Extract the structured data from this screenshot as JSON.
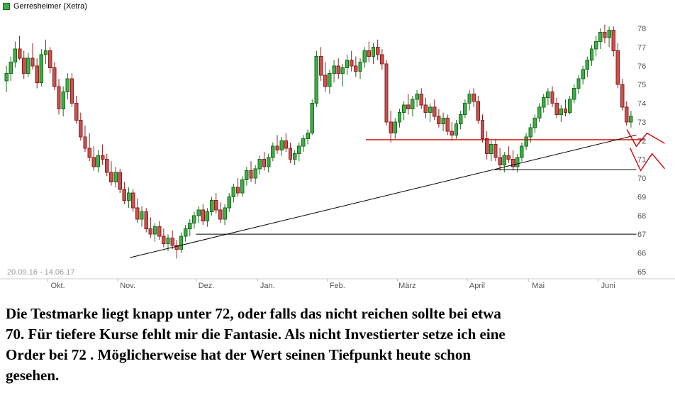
{
  "legend": {
    "title": "Gerresheimer (Xetra)"
  },
  "chart_data": {
    "type": "candlestick",
    "title": "Gerresheimer (Xetra)",
    "date_range_label": "20.09.16 - 14.06.17",
    "y_ticks": [
      65,
      66,
      67,
      68,
      69,
      70,
      71,
      72,
      73,
      74,
      75,
      76,
      77,
      78
    ],
    "x_axis_months": [
      {
        "label": "Okt.",
        "index": 10
      },
      {
        "label": "Nov.",
        "index": 26
      },
      {
        "label": "Dez.",
        "index": 44
      },
      {
        "label": "Jan.",
        "index": 58
      },
      {
        "label": "Feb.",
        "index": 74
      },
      {
        "label": "März",
        "index": 90
      },
      {
        "label": "April",
        "index": 106
      },
      {
        "label": "Mai",
        "index": 120
      },
      {
        "label": "Juni",
        "index": 136
      }
    ],
    "colors": {
      "up": "#3fae49",
      "up_border": "#1a6b1a",
      "down": "#c9524e",
      "down_border": "#8b1f1f",
      "annotation_red": "#d40000",
      "annotation_black": "#000000",
      "axis_text": "#555555",
      "axis_line": "#cccccc"
    },
    "candles": [
      [
        75.2,
        76.0,
        74.6,
        75.6
      ],
      [
        75.6,
        76.5,
        75.2,
        76.2
      ],
      [
        76.2,
        77.3,
        75.9,
        76.9
      ],
      [
        76.9,
        77.6,
        76.3,
        76.4
      ],
      [
        76.4,
        76.8,
        75.3,
        75.6
      ],
      [
        75.6,
        76.7,
        75.4,
        76.4
      ],
      [
        76.4,
        77.2,
        75.8,
        76.0
      ],
      [
        76.0,
        76.4,
        74.8,
        75.1
      ],
      [
        75.1,
        76.9,
        74.9,
        76.6
      ],
      [
        76.6,
        77.4,
        76.1,
        76.8
      ],
      [
        76.8,
        77.0,
        75.6,
        75.9
      ],
      [
        75.9,
        76.2,
        74.7,
        74.9
      ],
      [
        74.9,
        75.3,
        73.4,
        73.7
      ],
      [
        73.7,
        74.9,
        73.3,
        74.6
      ],
      [
        74.6,
        75.6,
        74.2,
        75.3
      ],
      [
        75.3,
        75.6,
        73.8,
        74.0
      ],
      [
        74.0,
        74.4,
        72.9,
        73.1
      ],
      [
        73.1,
        73.5,
        72.0,
        72.2
      ],
      [
        72.2,
        72.8,
        71.4,
        71.6
      ],
      [
        71.6,
        72.4,
        70.9,
        71.1
      ],
      [
        71.1,
        71.7,
        70.4,
        70.6
      ],
      [
        70.6,
        71.5,
        70.3,
        71.2
      ],
      [
        71.2,
        71.8,
        70.7,
        71.0
      ],
      [
        71.0,
        71.3,
        70.1,
        70.3
      ],
      [
        70.3,
        70.9,
        69.6,
        69.8
      ],
      [
        69.8,
        70.6,
        69.5,
        70.3
      ],
      [
        70.3,
        70.5,
        69.2,
        69.4
      ],
      [
        69.4,
        69.8,
        68.6,
        68.8
      ],
      [
        68.8,
        69.5,
        68.4,
        69.2
      ],
      [
        69.2,
        69.4,
        68.2,
        68.4
      ],
      [
        68.4,
        68.9,
        67.6,
        67.8
      ],
      [
        67.8,
        68.5,
        67.4,
        68.2
      ],
      [
        68.2,
        68.4,
        67.1,
        67.3
      ],
      [
        67.3,
        67.9,
        66.8,
        67.0
      ],
      [
        67.0,
        67.6,
        66.6,
        67.4
      ],
      [
        67.4,
        67.7,
        66.7,
        66.9
      ],
      [
        66.9,
        67.3,
        66.3,
        66.5
      ],
      [
        66.5,
        67.0,
        66.1,
        66.8
      ],
      [
        66.8,
        67.2,
        66.2,
        66.4
      ],
      [
        66.4,
        66.7,
        65.7,
        66.2
      ],
      [
        66.2,
        67.1,
        66.0,
        66.9
      ],
      [
        66.9,
        67.5,
        66.6,
        67.3
      ],
      [
        67.3,
        67.8,
        66.9,
        67.6
      ],
      [
        67.6,
        68.2,
        67.3,
        68.0
      ],
      [
        68.0,
        68.5,
        67.6,
        68.3
      ],
      [
        68.3,
        68.6,
        67.5,
        67.7
      ],
      [
        67.7,
        68.4,
        67.4,
        68.2
      ],
      [
        68.2,
        69.0,
        68.0,
        68.8
      ],
      [
        68.8,
        69.2,
        68.1,
        68.3
      ],
      [
        68.3,
        68.7,
        67.6,
        67.8
      ],
      [
        67.8,
        68.6,
        67.5,
        68.4
      ],
      [
        68.4,
        69.2,
        68.2,
        69.0
      ],
      [
        69.0,
        69.7,
        68.7,
        69.5
      ],
      [
        69.5,
        70.0,
        69.0,
        69.2
      ],
      [
        69.2,
        70.1,
        69.0,
        69.9
      ],
      [
        69.9,
        70.6,
        69.6,
        70.4
      ],
      [
        70.4,
        70.9,
        69.8,
        70.0
      ],
      [
        70.0,
        70.7,
        69.7,
        70.5
      ],
      [
        70.5,
        71.2,
        70.2,
        71.0
      ],
      [
        71.0,
        71.4,
        70.4,
        70.6
      ],
      [
        70.6,
        71.3,
        70.3,
        71.1
      ],
      [
        71.1,
        71.9,
        70.9,
        71.7
      ],
      [
        71.7,
        72.3,
        71.3,
        71.5
      ],
      [
        71.5,
        72.2,
        71.2,
        72.0
      ],
      [
        72.0,
        72.4,
        71.4,
        71.6
      ],
      [
        71.6,
        71.9,
        70.8,
        71.0
      ],
      [
        71.0,
        71.5,
        70.7,
        71.3
      ],
      [
        71.3,
        71.9,
        70.9,
        71.7
      ],
      [
        71.7,
        72.3,
        71.4,
        72.1
      ],
      [
        72.1,
        72.6,
        71.8,
        72.4
      ],
      [
        72.4,
        74.2,
        72.3,
        74.0
      ],
      [
        74.0,
        76.8,
        73.8,
        76.5
      ],
      [
        76.5,
        77.0,
        75.2,
        75.5
      ],
      [
        75.5,
        76.2,
        74.6,
        74.9
      ],
      [
        74.9,
        75.8,
        74.5,
        75.6
      ],
      [
        75.6,
        76.3,
        75.1,
        76.0
      ],
      [
        76.0,
        76.4,
        75.3,
        75.6
      ],
      [
        75.6,
        76.1,
        74.9,
        75.9
      ],
      [
        75.9,
        76.6,
        75.5,
        76.3
      ],
      [
        76.3,
        76.8,
        75.7,
        76.0
      ],
      [
        76.0,
        76.5,
        75.4,
        75.7
      ],
      [
        75.7,
        76.4,
        75.3,
        76.2
      ],
      [
        76.2,
        77.0,
        75.9,
        76.8
      ],
      [
        76.8,
        77.3,
        76.2,
        76.5
      ],
      [
        76.5,
        77.2,
        76.1,
        77.0
      ],
      [
        77.0,
        77.4,
        76.3,
        76.6
      ],
      [
        76.6,
        76.9,
        75.8,
        76.1
      ],
      [
        76.1,
        76.3,
        72.8,
        73.0
      ],
      [
        73.0,
        73.6,
        71.9,
        72.4
      ],
      [
        72.4,
        73.2,
        72.1,
        73.0
      ],
      [
        73.0,
        73.7,
        72.7,
        73.5
      ],
      [
        73.5,
        74.1,
        73.1,
        73.9
      ],
      [
        73.9,
        74.5,
        73.4,
        73.7
      ],
      [
        73.7,
        74.4,
        73.3,
        74.2
      ],
      [
        74.2,
        74.7,
        73.8,
        74.5
      ],
      [
        74.5,
        74.8,
        73.7,
        73.9
      ],
      [
        73.9,
        74.3,
        73.2,
        73.5
      ],
      [
        73.5,
        74.0,
        73.0,
        73.8
      ],
      [
        73.8,
        74.2,
        73.1,
        73.3
      ],
      [
        73.3,
        73.7,
        72.7,
        72.9
      ],
      [
        72.9,
        73.5,
        72.5,
        73.2
      ],
      [
        73.2,
        73.4,
        72.3,
        72.5
      ],
      [
        72.5,
        73.0,
        72.0,
        72.3
      ],
      [
        72.3,
        73.1,
        72.1,
        72.9
      ],
      [
        72.9,
        73.6,
        72.6,
        73.4
      ],
      [
        73.4,
        74.2,
        73.2,
        74.0
      ],
      [
        74.0,
        74.7,
        73.6,
        74.5
      ],
      [
        74.5,
        74.8,
        73.8,
        74.1
      ],
      [
        74.1,
        74.4,
        72.9,
        73.1
      ],
      [
        73.1,
        73.4,
        71.9,
        72.1
      ],
      [
        72.1,
        72.5,
        71.0,
        71.3
      ],
      [
        71.3,
        72.0,
        70.9,
        71.8
      ],
      [
        71.8,
        72.1,
        70.9,
        71.1
      ],
      [
        71.1,
        71.6,
        70.4,
        70.7
      ],
      [
        70.7,
        71.4,
        70.3,
        71.2
      ],
      [
        71.2,
        71.7,
        70.8,
        71.0
      ],
      [
        71.0,
        71.5,
        70.4,
        70.6
      ],
      [
        70.6,
        71.3,
        70.3,
        71.1
      ],
      [
        71.1,
        71.9,
        70.9,
        71.7
      ],
      [
        71.7,
        72.4,
        71.5,
        72.2
      ],
      [
        72.2,
        72.9,
        71.9,
        72.7
      ],
      [
        72.7,
        73.4,
        72.4,
        73.2
      ],
      [
        73.2,
        74.0,
        73.0,
        73.8
      ],
      [
        73.8,
        74.5,
        73.5,
        74.3
      ],
      [
        74.3,
        74.8,
        73.9,
        74.6
      ],
      [
        74.6,
        74.9,
        73.8,
        74.0
      ],
      [
        74.0,
        74.3,
        73.2,
        73.4
      ],
      [
        73.4,
        73.9,
        73.0,
        73.7
      ],
      [
        73.7,
        74.2,
        73.3,
        73.5
      ],
      [
        73.5,
        74.4,
        73.4,
        74.2
      ],
      [
        74.2,
        75.0,
        74.0,
        74.8
      ],
      [
        74.8,
        75.5,
        74.5,
        75.3
      ],
      [
        75.3,
        76.0,
        75.0,
        75.8
      ],
      [
        75.8,
        76.5,
        75.4,
        76.3
      ],
      [
        76.3,
        77.1,
        76.0,
        76.9
      ],
      [
        76.9,
        77.6,
        76.5,
        77.3
      ],
      [
        77.3,
        78.0,
        76.9,
        77.8
      ],
      [
        77.8,
        78.2,
        77.2,
        77.5
      ],
      [
        77.5,
        78.1,
        77.0,
        77.9
      ],
      [
        77.9,
        78.1,
        76.5,
        76.8
      ],
      [
        76.8,
        77.2,
        74.8,
        75.0
      ],
      [
        75.0,
        75.3,
        73.6,
        73.8
      ],
      [
        73.8,
        74.1,
        72.8,
        73.0
      ],
      [
        73.0,
        73.6,
        72.7,
        73.3
      ]
    ],
    "annotations": {
      "trendline": {
        "x1_frac": 0.2,
        "price1": 65.75,
        "x2_frac": 1.005,
        "price2": 72.3,
        "color": "#000000"
      },
      "hlines": [
        {
          "price": 67.0,
          "from_frac": 0.305,
          "to_frac": 1.005,
          "color": "#000000",
          "width": 1
        },
        {
          "price": 70.45,
          "from_frac": 0.78,
          "to_frac": 1.005,
          "color": "#000000",
          "width": 1
        },
        {
          "price": 72.05,
          "from_frac": 0.575,
          "to_frac": 1.018,
          "color": "#d40000",
          "width": 1.3
        }
      ],
      "marks": [
        {
          "color": "#d40000",
          "points": [
            [
              0.99,
              72.6
            ],
            [
              1.005,
              71.7
            ],
            [
              1.022,
              72.4
            ],
            [
              1.05,
              71.85
            ]
          ]
        },
        {
          "color": "#d40000",
          "points": [
            [
              0.995,
              71.6
            ],
            [
              1.012,
              70.4
            ],
            [
              1.03,
              71.3
            ],
            [
              1.05,
              70.5
            ]
          ]
        }
      ]
    }
  },
  "analysis": {
    "lines": [
      "Die Testmarke liegt knapp unter 72, oder falls das nicht reichen sollte bei etwa",
      "70. Für tiefere Kurse fehlt mir die Fantasie. Als nicht Investierter setze ich eine",
      "Order bei 72 . Möglicherweise hat der Wert seinen Tiefpunkt heute schon",
      "gesehen."
    ]
  }
}
